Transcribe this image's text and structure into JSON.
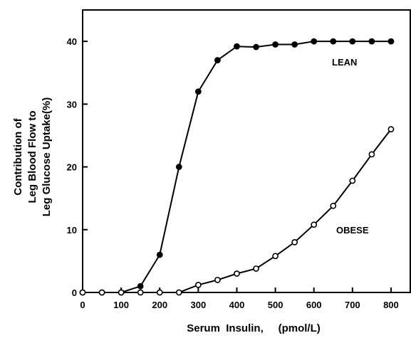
{
  "chart_data": {
    "type": "line",
    "xlabel": "Serum  Insulin,     (pmol/L)",
    "ylabel_lines": [
      "Contribution of",
      "Leg Blood Flow to",
      "Leg Glucose Uptake(%)"
    ],
    "xlim": [
      0,
      850
    ],
    "ylim": [
      0,
      45
    ],
    "xticks": [
      0,
      100,
      200,
      300,
      400,
      500,
      600,
      700,
      800
    ],
    "yticks": [
      0,
      10,
      20,
      30,
      40
    ],
    "grid": false,
    "series": [
      {
        "name": "LEAN",
        "marker": "filled-circle",
        "x": [
          0,
          50,
          100,
          150,
          200,
          250,
          300,
          350,
          400,
          450,
          500,
          550,
          600,
          650,
          700,
          750,
          800
        ],
        "y": [
          0,
          0,
          0,
          1,
          6,
          20,
          32,
          37,
          39.2,
          39.1,
          39.5,
          39.5,
          40,
          40,
          40,
          40,
          40
        ]
      },
      {
        "name": "OBESE",
        "marker": "open-circle",
        "x": [
          0,
          50,
          100,
          150,
          200,
          250,
          300,
          350,
          400,
          450,
          500,
          550,
          600,
          650,
          700,
          750,
          800
        ],
        "y": [
          0,
          0,
          0,
          0,
          0,
          0,
          1.2,
          2,
          3,
          3.8,
          5.8,
          8,
          10.8,
          13.8,
          17.8,
          22,
          26
        ]
      }
    ]
  }
}
